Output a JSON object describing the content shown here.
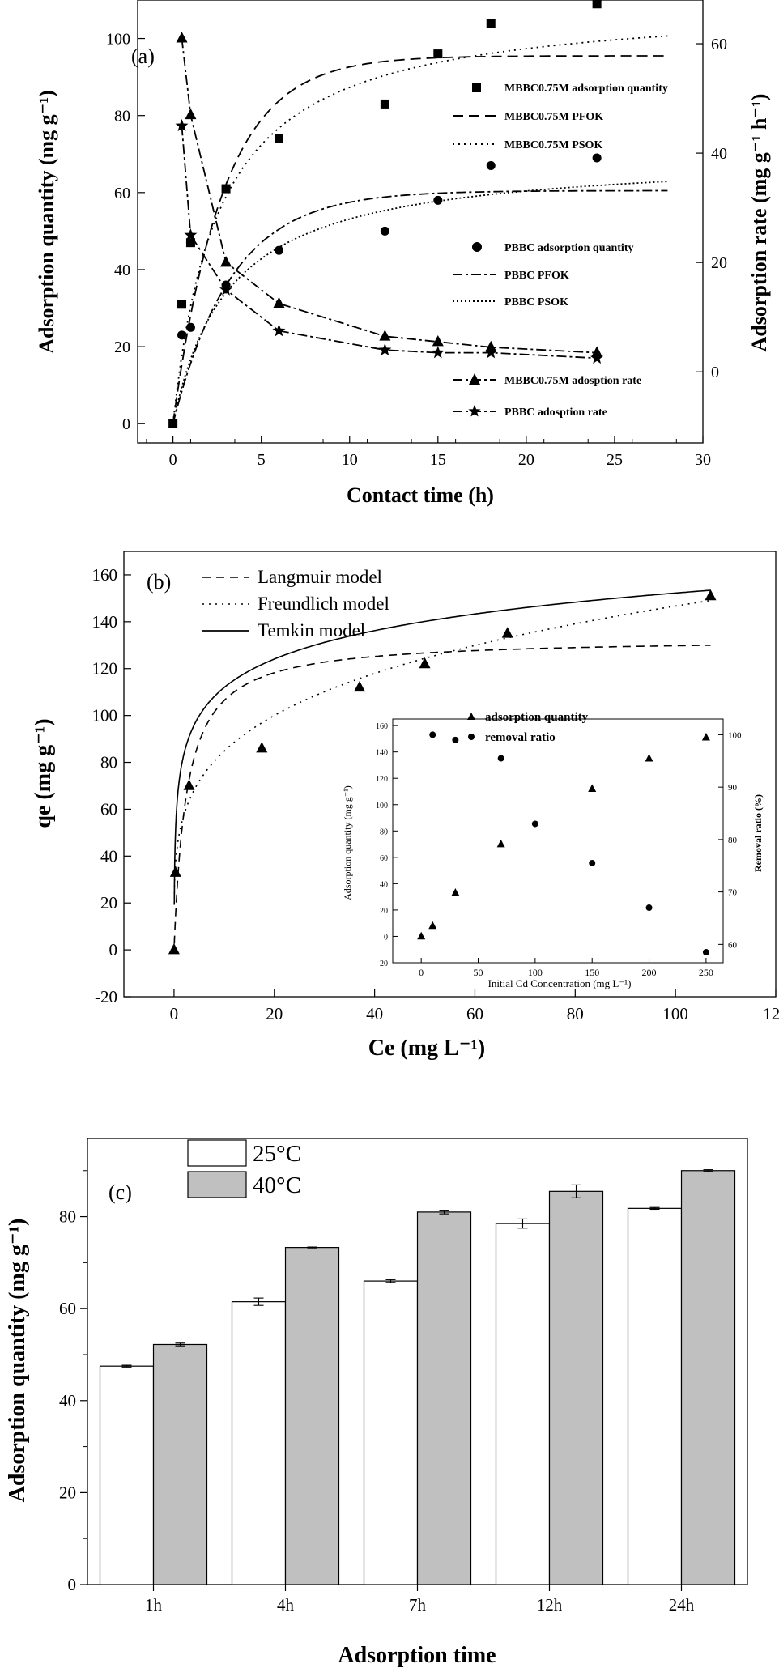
{
  "chart_data": [
    {
      "panel": "(a)",
      "type": "scatter",
      "xlabel": "Contact time (h)",
      "ylabel_left": "Adsorption quantity (mg g⁻¹)",
      "ylabel_right": "Adsorption rate (mg g⁻¹ h⁻¹)",
      "xlim": [
        -2,
        30
      ],
      "xticks": [
        0,
        5,
        10,
        15,
        20,
        25,
        30
      ],
      "ylim_left": [
        -5,
        110
      ],
      "yticks_left": [
        0,
        20,
        40,
        60,
        80,
        100
      ],
      "ylim_right": [
        -13,
        68
      ],
      "yticks_right": [
        0,
        20,
        40,
        60
      ],
      "legend_top": [
        {
          "label": "MBBC0.75M adsorption quantity",
          "style": "square"
        },
        {
          "label": "MBBC0.75M PFOK",
          "style": "dash"
        },
        {
          "label": "MBBC0.75M PSOK",
          "style": "dot"
        }
      ],
      "legend_mid": [
        {
          "label": "PBBC adsorption quantity",
          "style": "circle"
        },
        {
          "label": "PBBC PFOK",
          "style": "dashdot"
        },
        {
          "label": "PBBC PSOK",
          "style": "dot"
        }
      ],
      "legend_bottom": [
        {
          "label": "MBBC0.75M adosption rate",
          "style": "triangle-dashdot"
        },
        {
          "label": "PBBC  adosption rate",
          "style": "star-dashdot"
        }
      ],
      "series": [
        {
          "name": "MBBC0.75M adsorption quantity",
          "marker": "square",
          "axis": "left",
          "x": [
            0,
            0.5,
            1,
            3,
            6,
            12,
            15,
            18,
            24
          ],
          "y": [
            0,
            31,
            47,
            61,
            74,
            83,
            96,
            104,
            109
          ]
        },
        {
          "name": "PBBC adsorption quantity",
          "marker": "circle",
          "axis": "left",
          "x": [
            0.5,
            1,
            3,
            6,
            12,
            15,
            18,
            24
          ],
          "y": [
            23,
            25,
            36,
            45,
            50,
            58,
            67,
            69
          ]
        },
        {
          "name": "MBBC0.75M adosption rate",
          "marker": "triangle",
          "axis": "right",
          "x": [
            0.5,
            1,
            3,
            6,
            12,
            15,
            18,
            24
          ],
          "y": [
            61,
            47,
            20,
            12.5,
            6.5,
            5.5,
            4.5,
            3.5
          ]
        },
        {
          "name": "PBBC  adosption rate",
          "marker": "star",
          "axis": "right",
          "x": [
            0.5,
            1,
            3,
            6,
            12,
            15,
            18,
            24
          ],
          "y": [
            45,
            25,
            15,
            7.5,
            4,
            3.5,
            3.5,
            2.5
          ]
        }
      ],
      "fits": [
        {
          "name": "MBBC0.75M PFOK",
          "style": "dash",
          "model": "pfo",
          "qe": 95.5,
          "k": 0.35,
          "xmax": 28
        },
        {
          "name": "MBBC0.75M PSOK",
          "style": "dot",
          "model": "pso",
          "qe": 110,
          "k": 0.0035,
          "xmax": 28
        },
        {
          "name": "PBBC PFOK",
          "style": "dashdot",
          "model": "pfo",
          "qe": 60.5,
          "k": 0.3,
          "xmax": 28
        },
        {
          "name": "PBBC PSOK",
          "style": "dot",
          "model": "pso",
          "qe": 70,
          "k": 0.0045,
          "xmax": 28
        }
      ]
    },
    {
      "panel": "(b)",
      "type": "scatter",
      "xlabel": "Ce (mg L⁻¹)",
      "ylabel": "qe (mg g⁻¹)",
      "xlim": [
        -10,
        120
      ],
      "xticks": [
        0,
        20,
        40,
        60,
        80,
        100,
        120
      ],
      "ylim": [
        -20,
        170
      ],
      "yticks": [
        -20,
        0,
        20,
        40,
        60,
        80,
        100,
        120,
        140,
        160
      ],
      "legend": [
        {
          "label": "Langmuir model",
          "style": "dash"
        },
        {
          "label": "Freundlich model",
          "style": "dot"
        },
        {
          "label": "Temkin model",
          "style": "solid"
        }
      ],
      "series": [
        {
          "name": "qe",
          "marker": "triangle",
          "x": [
            0,
            0.3,
            3,
            17.5,
            37,
            50,
            66.5,
            107
          ],
          "y": [
            0,
            33,
            70,
            86,
            112,
            122,
            135,
            151
          ]
        }
      ],
      "fits": [
        {
          "name": "Langmuir model",
          "style": "dash",
          "model": "langmuir",
          "qm": 133,
          "KL": 0.4
        },
        {
          "name": "Freundlich model",
          "style": "dot",
          "model": "freundlich",
          "KF": 49,
          "n": 4.2
        },
        {
          "name": "Temkin model",
          "style": "solid",
          "model": "temkin",
          "A": 60,
          "B": 17.5
        }
      ],
      "inset": {
        "xlabel": "Initial Cd Concentration (mg L⁻¹)",
        "ylabel_left": "Adsorption quantity (mg g⁻¹)",
        "ylabel_right": "Removal ratio (%)",
        "xlim": [
          -25,
          265
        ],
        "xticks": [
          0,
          50,
          100,
          150,
          200,
          250
        ],
        "ylim_left": [
          -20,
          165
        ],
        "yticks_left": [
          -20,
          0,
          20,
          40,
          60,
          80,
          100,
          120,
          140,
          160
        ],
        "ylim_right": [
          56.5,
          103
        ],
        "yticks_right": [
          60,
          70,
          80,
          90,
          100
        ],
        "legend": [
          {
            "label": "adsorption quantity",
            "style": "triangle"
          },
          {
            "label": "removal ratio",
            "style": "circle"
          }
        ],
        "series": [
          {
            "name": "adsorption quantity",
            "marker": "triangle",
            "axis": "left",
            "x": [
              0,
              10,
              30,
              70,
              150,
              200,
              250
            ],
            "y": [
              0,
              8,
              33,
              70,
              112,
              135,
              151
            ]
          },
          {
            "name": "removal ratio",
            "marker": "circle",
            "axis": "right",
            "x": [
              10,
              30,
              70,
              100,
              150,
              200,
              250
            ],
            "y": [
              100,
              99,
              95.5,
              83,
              75.5,
              67,
              58.5
            ]
          }
        ]
      }
    },
    {
      "panel": "(c)",
      "type": "bar",
      "xlabel": "Adsorption time",
      "ylabel": "Adsorption quantity (mg g⁻¹)",
      "categories": [
        "1h",
        "4h",
        "7h",
        "12h",
        "24h"
      ],
      "ylim": [
        0,
        97
      ],
      "yticks": [
        0,
        20,
        40,
        60,
        80
      ],
      "legend": [
        {
          "label": "25°C",
          "color": "#ffffff"
        },
        {
          "label": "40°C",
          "color": "#c0c0c0"
        }
      ],
      "series": [
        {
          "name": "25°C",
          "color": "#ffffff",
          "values": [
            47.5,
            61.5,
            66,
            78.5,
            81.8
          ],
          "errors": [
            0.2,
            0.8,
            0.3,
            1.0,
            0.2
          ]
        },
        {
          "name": "40°C",
          "color": "#c0c0c0",
          "values": [
            52.2,
            73.3,
            81,
            85.5,
            90
          ],
          "errors": [
            0.3,
            0.1,
            0.4,
            1.4,
            0.2
          ]
        }
      ]
    }
  ]
}
